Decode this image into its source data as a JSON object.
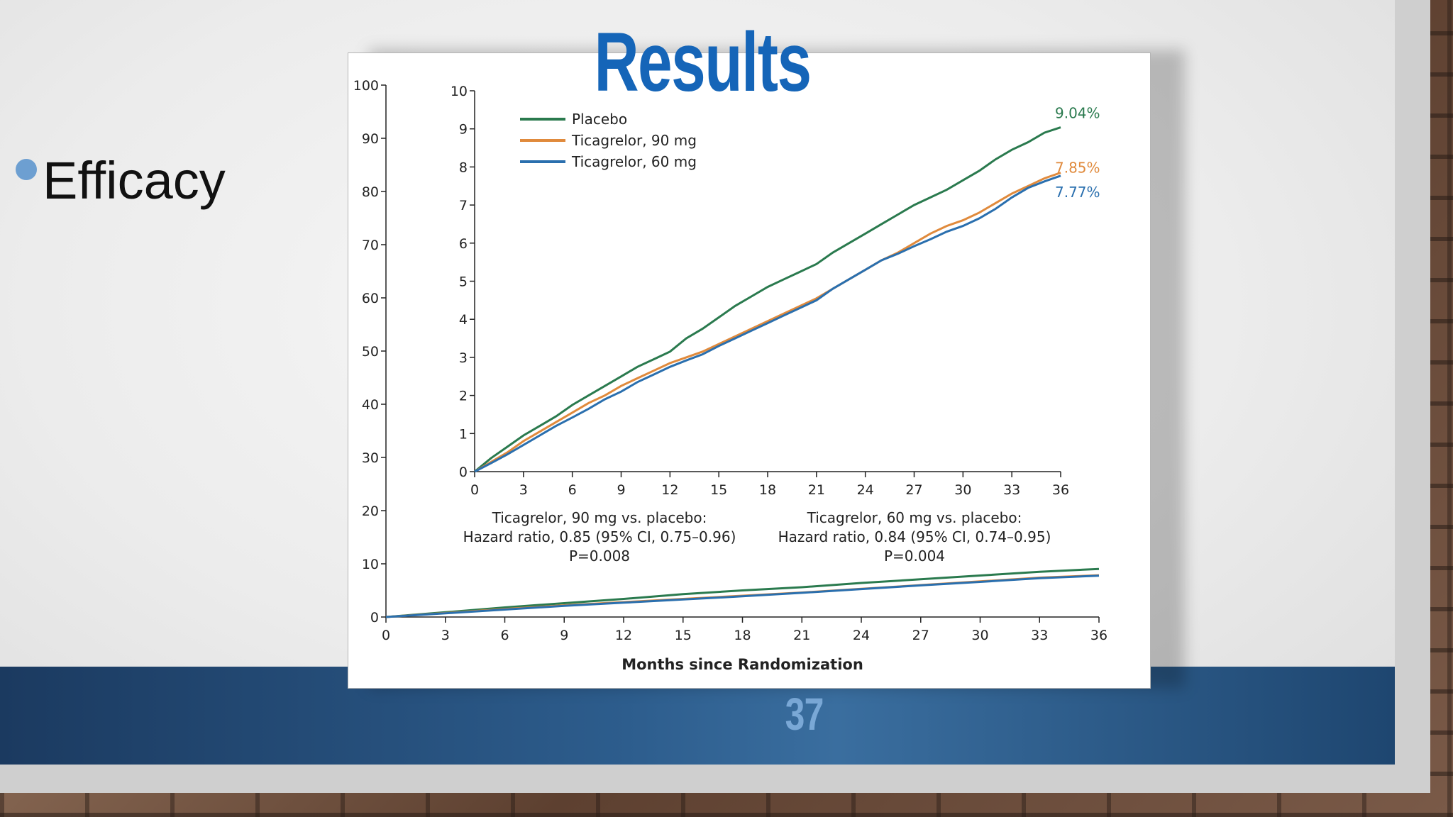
{
  "slide": {
    "title": "Results",
    "bullet": "Efficacy",
    "page_number": "37"
  },
  "colors": {
    "placebo": "#2a7a4e",
    "tica90": "#e08a3c",
    "tica60": "#2a6fae",
    "accent": "#1565b8"
  },
  "chart_data": [
    {
      "type": "line",
      "title": "",
      "xlabel": "Months since Randomization",
      "ylabel": "",
      "xlim": [
        0,
        36
      ],
      "ylim": [
        0,
        100
      ],
      "xticks": [
        0,
        3,
        6,
        9,
        12,
        15,
        18,
        21,
        24,
        27,
        30,
        33,
        36
      ],
      "yticks": [
        0,
        10,
        20,
        30,
        40,
        50,
        60,
        70,
        80,
        90,
        100
      ],
      "series": [
        {
          "key": "placebo",
          "x": [
            0,
            3,
            6,
            9,
            12,
            15,
            18,
            21,
            24,
            27,
            30,
            33,
            36
          ],
          "values": [
            0,
            0.9,
            1.8,
            2.6,
            3.4,
            4.3,
            5.0,
            5.6,
            6.4,
            7.1,
            7.8,
            8.5,
            9.04
          ]
        },
        {
          "key": "tica90",
          "x": [
            0,
            3,
            6,
            9,
            12,
            15,
            18,
            21,
            24,
            27,
            30,
            33,
            36
          ],
          "values": [
            0,
            0.75,
            1.5,
            2.2,
            2.8,
            3.4,
            4.0,
            4.6,
            5.3,
            6.0,
            6.7,
            7.4,
            7.85
          ]
        },
        {
          "key": "tica60",
          "x": [
            0,
            3,
            6,
            9,
            12,
            15,
            18,
            21,
            24,
            27,
            30,
            33,
            36
          ],
          "values": [
            0,
            0.7,
            1.4,
            2.1,
            2.7,
            3.3,
            3.9,
            4.55,
            5.25,
            5.95,
            6.6,
            7.3,
            7.77
          ]
        }
      ]
    },
    {
      "type": "line",
      "title": "",
      "xlabel": "",
      "ylabel": "",
      "xlim": [
        0,
        36
      ],
      "ylim": [
        0,
        10
      ],
      "xticks": [
        0,
        3,
        6,
        9,
        12,
        15,
        18,
        21,
        24,
        27,
        30,
        33,
        36
      ],
      "yticks": [
        0,
        1,
        2,
        3,
        4,
        5,
        6,
        7,
        8,
        9,
        10
      ],
      "series": [
        {
          "key": "placebo",
          "name": "Placebo",
          "end_label": "9.04%",
          "x": [
            0,
            1,
            2,
            3,
            4,
            5,
            6,
            7,
            8,
            9,
            10,
            11,
            12,
            13,
            14,
            15,
            16,
            17,
            18,
            19,
            20,
            21,
            22,
            23,
            24,
            25,
            26,
            27,
            28,
            29,
            30,
            31,
            32,
            33,
            34,
            35,
            36
          ],
          "values": [
            0,
            0.35,
            0.65,
            0.95,
            1.2,
            1.45,
            1.75,
            2.0,
            2.25,
            2.5,
            2.75,
            2.95,
            3.15,
            3.5,
            3.75,
            4.05,
            4.35,
            4.6,
            4.85,
            5.05,
            5.25,
            5.45,
            5.75,
            6.0,
            6.25,
            6.5,
            6.75,
            7.0,
            7.2,
            7.4,
            7.65,
            7.9,
            8.2,
            8.45,
            8.65,
            8.9,
            9.04
          ]
        },
        {
          "key": "tica90",
          "name": "Ticagrelor, 90 mg",
          "end_label": "7.85%",
          "x": [
            0,
            1,
            2,
            3,
            4,
            5,
            6,
            7,
            8,
            9,
            10,
            11,
            12,
            13,
            14,
            15,
            16,
            17,
            18,
            19,
            20,
            21,
            22,
            23,
            24,
            25,
            26,
            27,
            28,
            29,
            30,
            31,
            32,
            33,
            34,
            35,
            36
          ],
          "values": [
            0,
            0.25,
            0.5,
            0.8,
            1.05,
            1.3,
            1.55,
            1.8,
            2.0,
            2.25,
            2.45,
            2.65,
            2.85,
            3.0,
            3.15,
            3.35,
            3.55,
            3.75,
            3.95,
            4.15,
            4.35,
            4.55,
            4.8,
            5.05,
            5.3,
            5.55,
            5.75,
            6.0,
            6.25,
            6.45,
            6.6,
            6.8,
            7.05,
            7.3,
            7.5,
            7.7,
            7.85
          ]
        },
        {
          "key": "tica60",
          "name": "Ticagrelor, 60 mg",
          "end_label": "7.77%",
          "x": [
            0,
            1,
            2,
            3,
            4,
            5,
            6,
            7,
            8,
            9,
            10,
            11,
            12,
            13,
            14,
            15,
            16,
            17,
            18,
            19,
            20,
            21,
            22,
            23,
            24,
            25,
            26,
            27,
            28,
            29,
            30,
            31,
            32,
            33,
            34,
            35,
            36
          ],
          "values": [
            0,
            0.22,
            0.45,
            0.7,
            0.95,
            1.2,
            1.42,
            1.65,
            1.9,
            2.1,
            2.35,
            2.55,
            2.75,
            2.92,
            3.08,
            3.3,
            3.5,
            3.7,
            3.9,
            4.1,
            4.3,
            4.5,
            4.8,
            5.05,
            5.3,
            5.55,
            5.72,
            5.92,
            6.1,
            6.3,
            6.45,
            6.65,
            6.9,
            7.2,
            7.45,
            7.62,
            7.77
          ]
        }
      ],
      "annotations": [
        {
          "lines": [
            "Ticagrelor, 90 mg vs. placebo:",
            "Hazard ratio, 0.85 (95% CI, 0.75–0.96)",
            "P=0.008"
          ]
        },
        {
          "lines": [
            "Ticagrelor, 60 mg vs. placebo:",
            "Hazard ratio, 0.84 (95% CI, 0.74–0.95)",
            "P=0.004"
          ]
        }
      ]
    }
  ]
}
